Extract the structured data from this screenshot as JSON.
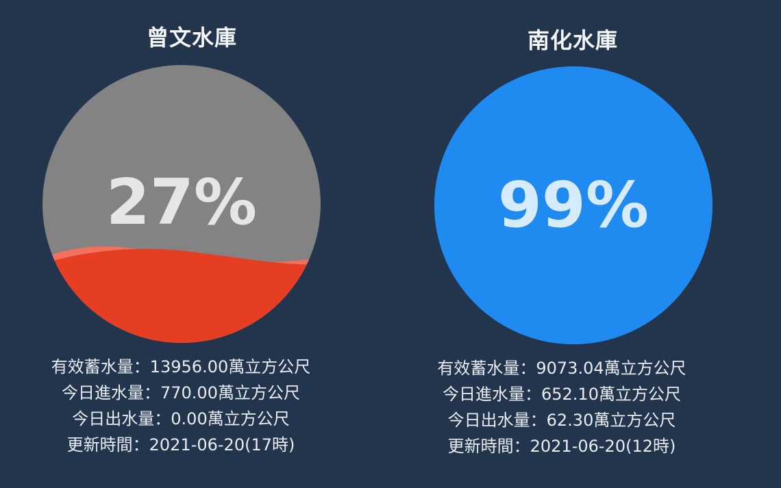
{
  "reservoirs": [
    {
      "name": "曾文水庫",
      "percent_text": "27%",
      "percent_value": 27,
      "fill_color": "#e63e22",
      "wave_highlight_color": "#f1705e",
      "empty_color": "#838383",
      "percent_text_color": "#e6e6e6",
      "info": [
        "有效蓄水量：13956.00萬立方公尺",
        "今日進水量：770.00萬立方公尺",
        "今日出水量：0.00萬立方公尺",
        "更新時間：2021-06-20(17時)"
      ]
    },
    {
      "name": "南化水庫",
      "percent_text": "99%",
      "percent_value": 99,
      "fill_color": "#1f8af0",
      "wave_highlight_color": "#1f8af0",
      "empty_color": "#1f8af0",
      "percent_text_color": "#d7ebff",
      "info": [
        "有效蓄水量：9073.04萬立方公尺",
        "今日進水量：652.10萬立方公尺",
        "今日出水量：62.30萬立方公尺",
        "更新時間：2021-06-20(12時)"
      ]
    }
  ],
  "colors": {
    "background": "#22354d",
    "text": "#e9edf2"
  }
}
